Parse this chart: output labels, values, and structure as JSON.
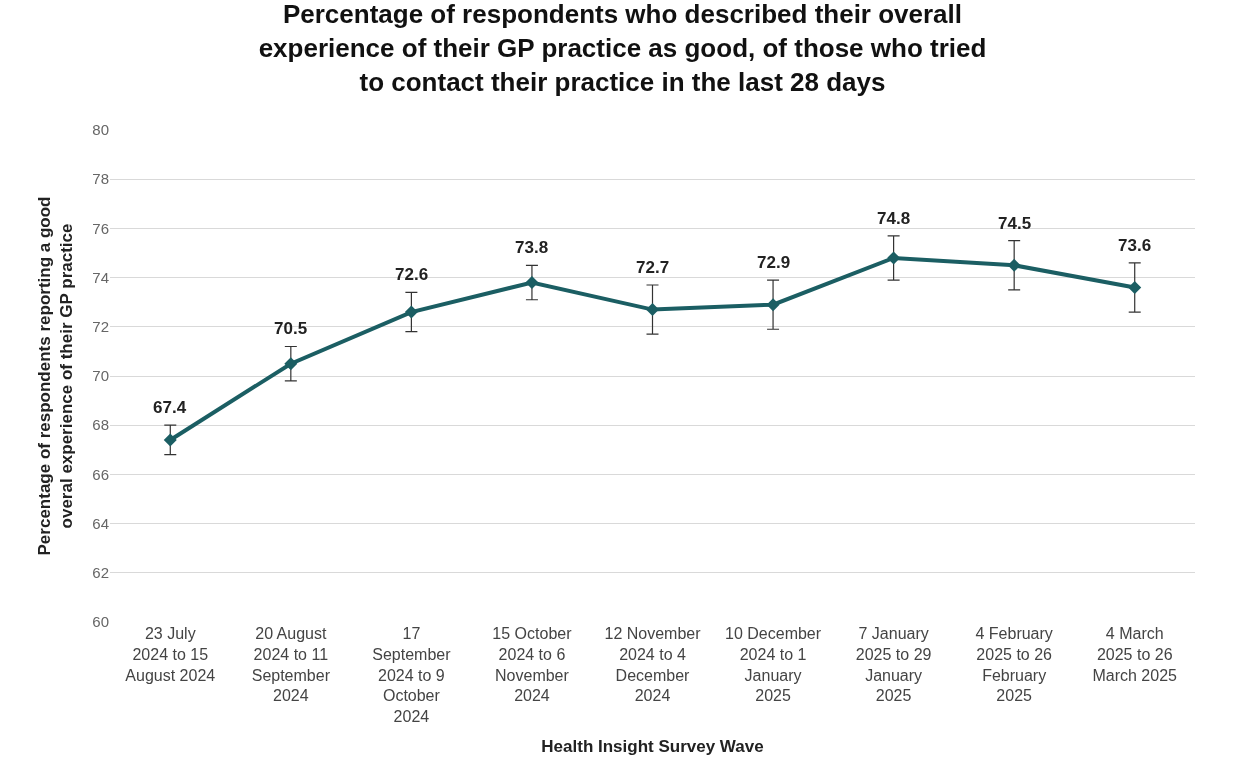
{
  "chart_data": {
    "type": "line",
    "title": "Percentage of respondents who described their overall experience of their GP practice as good, of those who tried to contact their practice in the last 28 days",
    "xlabel": "Health Insight Survey Wave",
    "ylabel": "Percentage of respondents reporting a good overal experience of their GP practice",
    "categories": [
      "23 July 2024 to 15 August 2024",
      "20 August 2024 to 11 September 2024",
      "17 September 2024 to 9 October 2024",
      "15 October 2024 to 6 November 2024",
      "12 November 2024 to 4 December 2024",
      "10 December 2024 to 1 January 2025",
      "7 January 2025 to 29 January 2025",
      "4 February 2025 to 26 February 2025",
      "4 March 2025 to 26 March 2025"
    ],
    "series": [
      {
        "color": "#1b5e63",
        "values": [
          67.4,
          70.5,
          72.6,
          73.8,
          72.7,
          72.9,
          74.8,
          74.5,
          73.6
        ],
        "errors": [
          0.6,
          0.7,
          0.8,
          0.7,
          1.0,
          1.0,
          0.9,
          1.0,
          1.0
        ]
      }
    ],
    "ylim": [
      60,
      80
    ],
    "yticks": [
      60,
      62,
      64,
      66,
      68,
      70,
      72,
      74,
      76,
      78,
      80
    ],
    "grid": "y",
    "marker": "diamond",
    "line_style": "solid",
    "data_labels": true
  }
}
